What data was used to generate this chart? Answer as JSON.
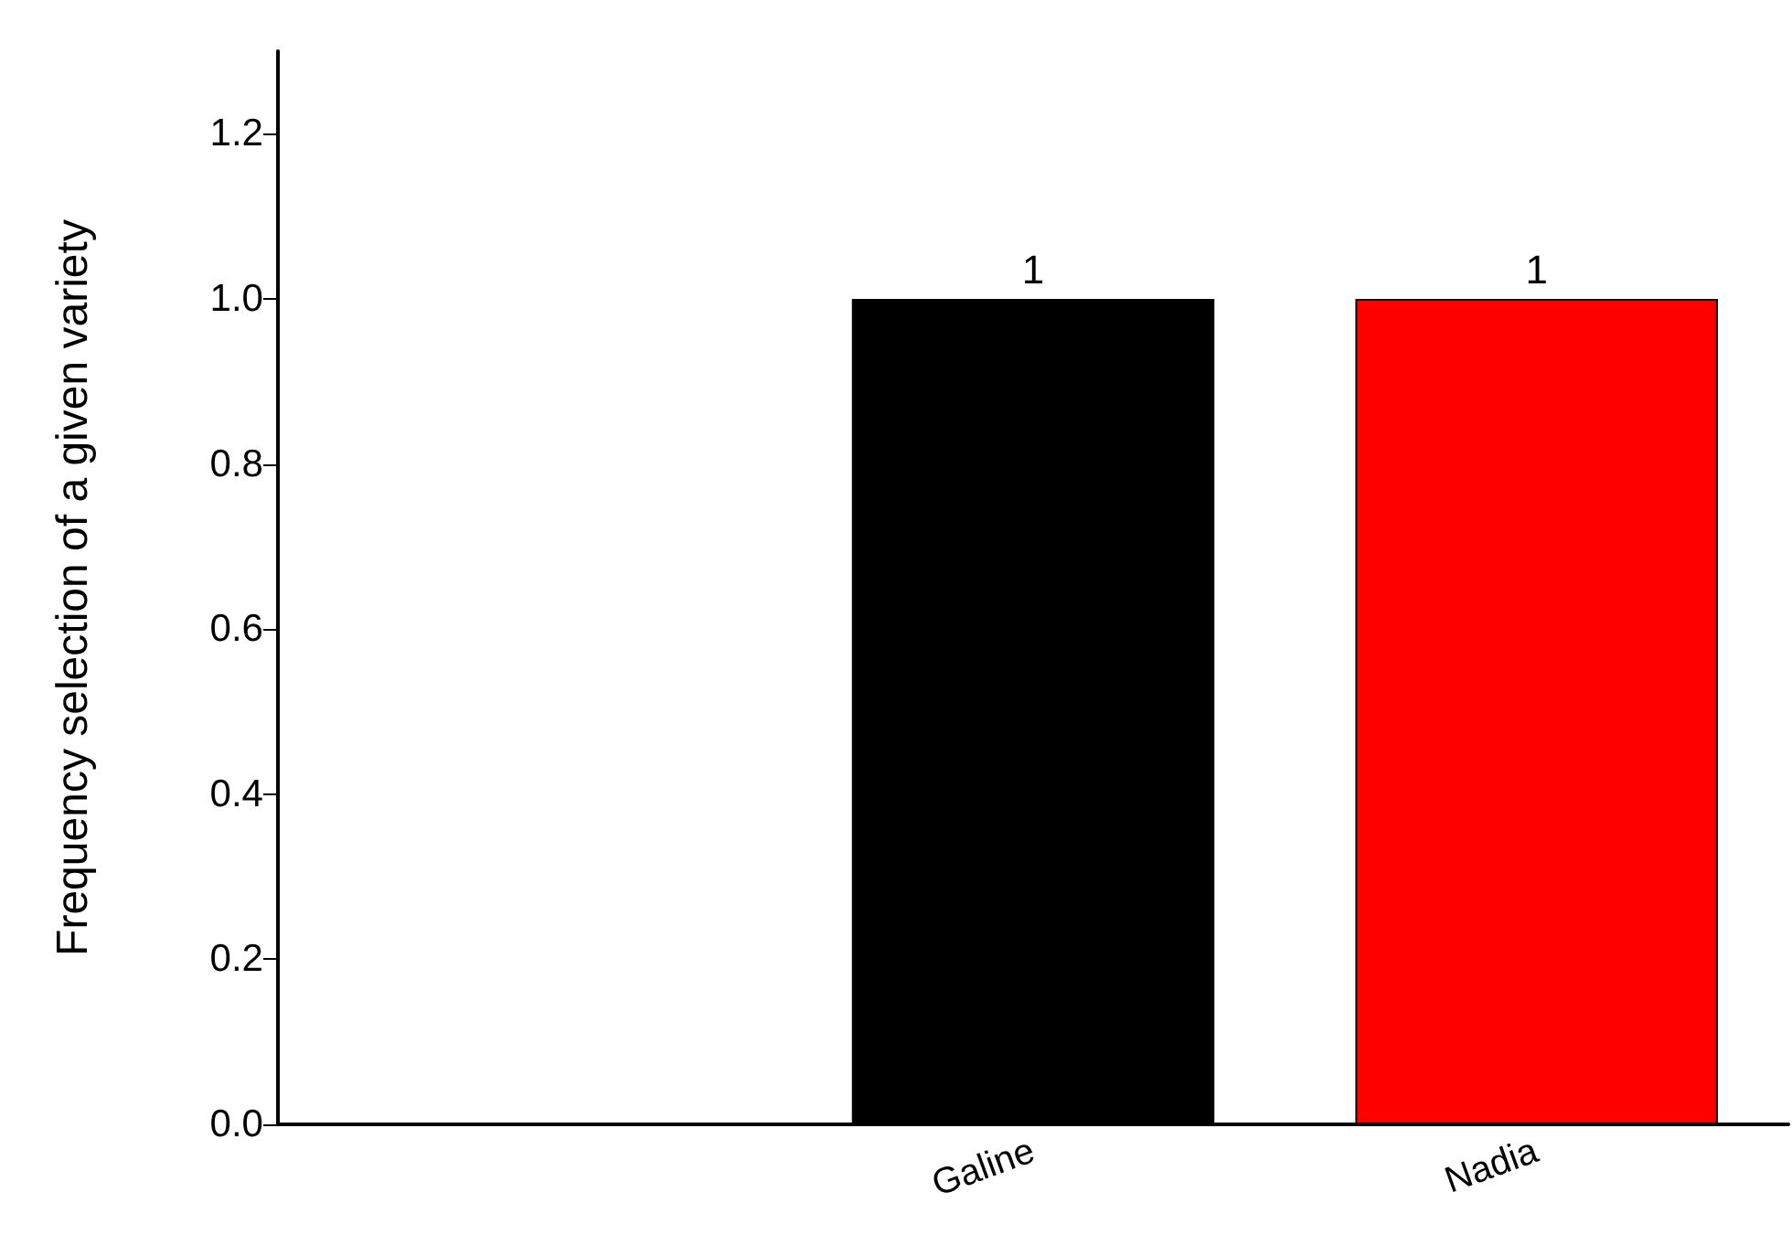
{
  "chart_data": {
    "type": "bar",
    "ylabel": "Frequency selection of a given variety",
    "categories": [
      null,
      "Galine",
      "Nadia"
    ],
    "values": [
      null,
      1,
      1
    ],
    "colors": [
      "#000000",
      "#000000",
      "#ff0000"
    ],
    "ylim": [
      0,
      1.3
    ],
    "yticks": [
      {
        "value": 0,
        "label": "0.0"
      },
      0.2,
      0.4,
      0.6,
      0.8,
      {
        "value": 1,
        "label": "1.0"
      },
      1.2
    ],
    "data_labels": true,
    "grid": false
  }
}
